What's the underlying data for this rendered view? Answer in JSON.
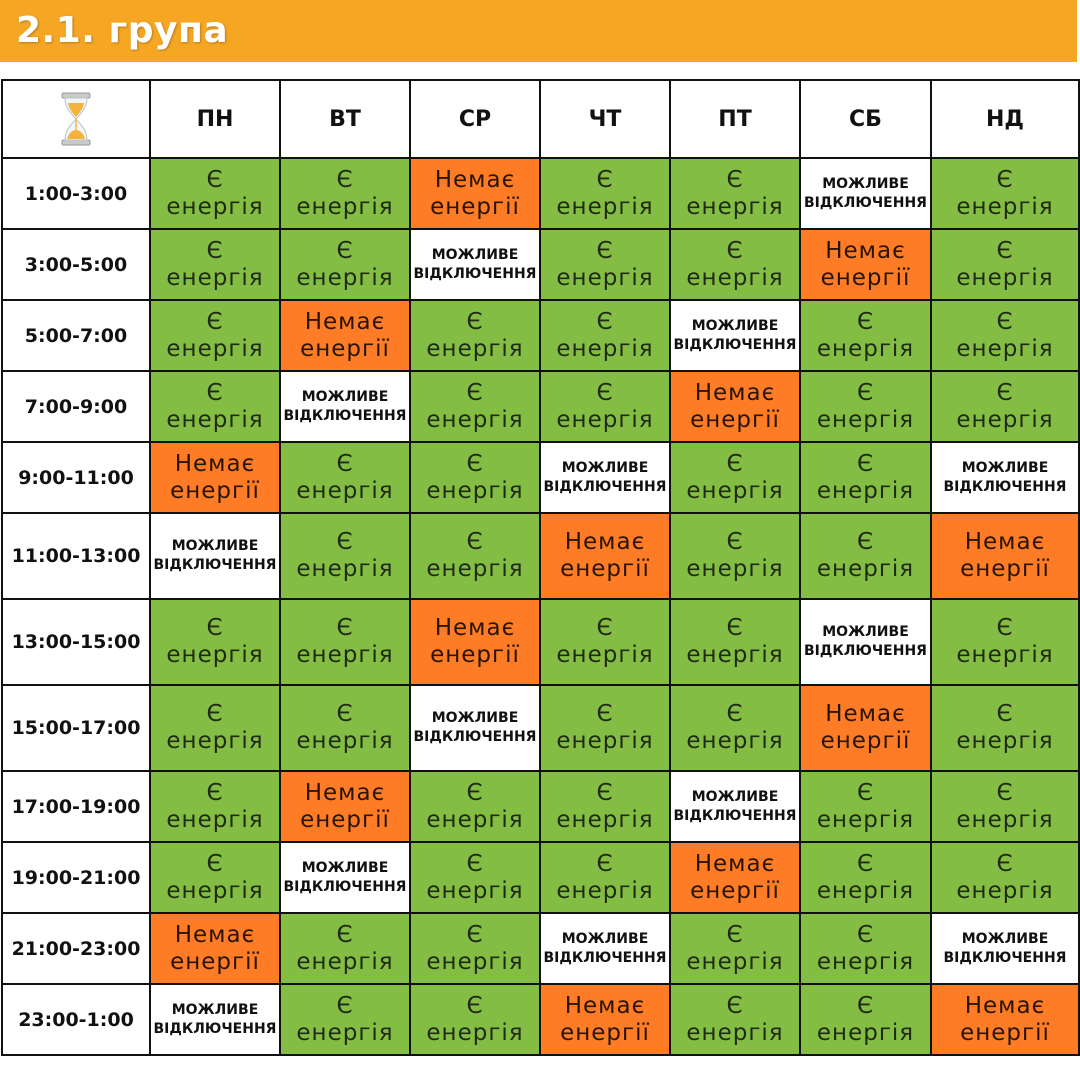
{
  "header": {
    "title": "2.1. група",
    "color": "#f5a623"
  },
  "colors": {
    "on": "#84bd43",
    "off": "#fd7c25",
    "maybe": "#ffffff"
  },
  "table": {
    "corner_icon": "hourglass-icon",
    "days": [
      "ПН",
      "ВТ",
      "СР",
      "ЧТ",
      "ПТ",
      "СБ",
      "НД"
    ],
    "status_labels": {
      "on": [
        "Є",
        "енергія"
      ],
      "off": [
        "Немає",
        "енергії"
      ],
      "maybe": [
        "МОЖЛИВЕ",
        "ВІДКЛЮЧЕННЯ"
      ]
    },
    "rows": [
      {
        "time": "1:00-3:00",
        "cells": [
          "on",
          "on",
          "off",
          "on",
          "on",
          "maybe",
          "on"
        ]
      },
      {
        "time": "3:00-5:00",
        "cells": [
          "on",
          "on",
          "maybe",
          "on",
          "on",
          "off",
          "on"
        ]
      },
      {
        "time": "5:00-7:00",
        "cells": [
          "on",
          "off",
          "on",
          "on",
          "maybe",
          "on",
          "on"
        ]
      },
      {
        "time": "7:00-9:00",
        "cells": [
          "on",
          "maybe",
          "on",
          "on",
          "off",
          "on",
          "on"
        ]
      },
      {
        "time": "9:00-11:00",
        "cells": [
          "off",
          "on",
          "on",
          "maybe",
          "on",
          "on",
          "maybe"
        ]
      },
      {
        "time": "11:00-13:00",
        "cells": [
          "maybe",
          "on",
          "on",
          "off",
          "on",
          "on",
          "off"
        ]
      },
      {
        "time": "13:00-15:00",
        "cells": [
          "on",
          "on",
          "off",
          "on",
          "on",
          "maybe",
          "on"
        ]
      },
      {
        "time": "15:00-17:00",
        "cells": [
          "on",
          "on",
          "maybe",
          "on",
          "on",
          "off",
          "on"
        ]
      },
      {
        "time": "17:00-19:00",
        "cells": [
          "on",
          "off",
          "on",
          "on",
          "maybe",
          "on",
          "on"
        ]
      },
      {
        "time": "19:00-21:00",
        "cells": [
          "on",
          "maybe",
          "on",
          "on",
          "off",
          "on",
          "on"
        ]
      },
      {
        "time": "21:00-23:00",
        "cells": [
          "off",
          "on",
          "on",
          "maybe",
          "on",
          "on",
          "maybe"
        ]
      },
      {
        "time": "23:00-1:00",
        "cells": [
          "maybe",
          "on",
          "on",
          "off",
          "on",
          "on",
          "off"
        ]
      }
    ]
  }
}
